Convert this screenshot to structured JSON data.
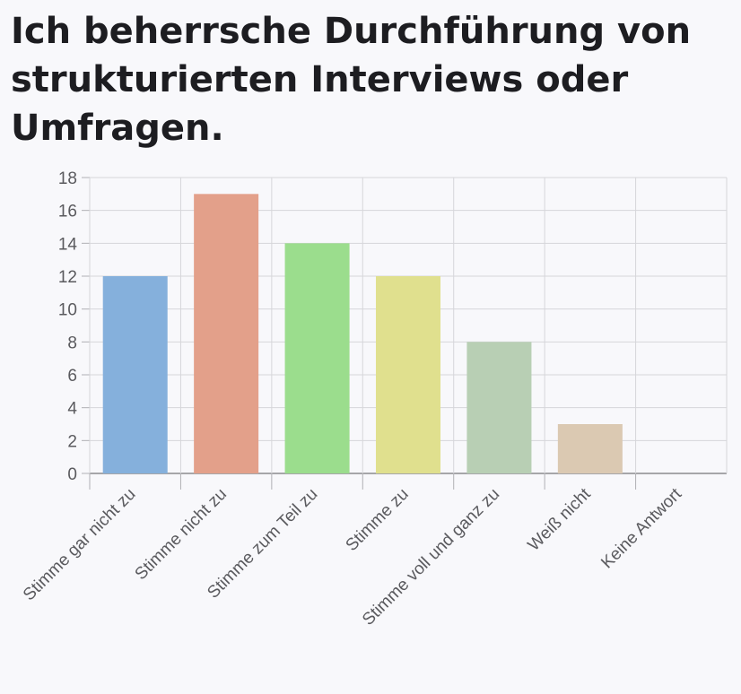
{
  "chart_data": {
    "type": "bar",
    "title": "Ich beherrsche Durchführung von strukturierten Interviews oder Umfragen.",
    "categories": [
      "Stimme gar nicht zu",
      "Stimme nicht zu",
      "Stimme zum Teil zu",
      "Stimme zu",
      "Stimme voll und ganz zu",
      "Weiß nicht",
      "Keine Antwort"
    ],
    "values": [
      12,
      17,
      14,
      12,
      8,
      3,
      0
    ],
    "colors": [
      "#85b0dc",
      "#e3a08a",
      "#9bdd8d",
      "#e0e08e",
      "#b8cfb4",
      "#dbc9b2",
      "#cccccc"
    ],
    "ylim": [
      0,
      18
    ],
    "yticks": [
      0,
      2,
      4,
      6,
      8,
      10,
      12,
      14,
      16,
      18
    ],
    "xlabel": "",
    "ylabel": "",
    "grid": true,
    "legend": "none"
  }
}
